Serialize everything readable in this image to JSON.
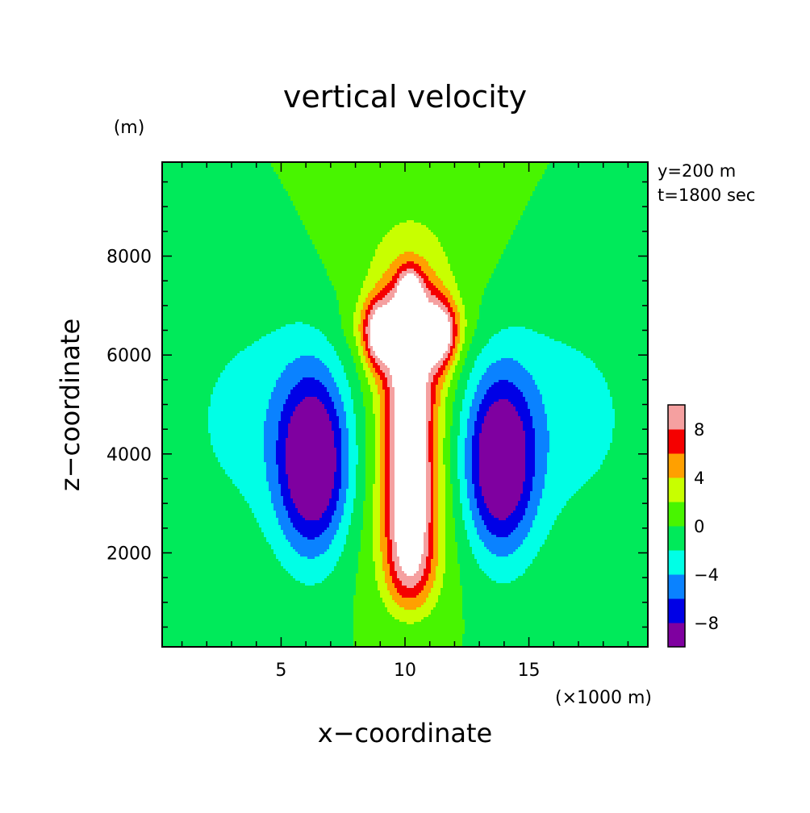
{
  "chart_data": {
    "type": "heatmap",
    "subtype": "filled-contour",
    "title": "vertical velocity",
    "xlabel": "x−coordinate",
    "ylabel": "z−coordinate",
    "x_unit": "(×1000 m)",
    "y_unit": "(m)",
    "annotations": [
      "y=200 m",
      "t=1800 sec"
    ],
    "xlim": [
      0.2,
      19.8
    ],
    "ylim": [
      100,
      9900
    ],
    "x_ticks": [
      "5",
      "10",
      "15"
    ],
    "y_ticks": [
      "2000",
      "4000",
      "6000",
      "8000"
    ],
    "x_tick_values": [
      5,
      10,
      15
    ],
    "y_tick_values": [
      2000,
      4000,
      6000,
      8000
    ],
    "grid": false,
    "colorbar": {
      "placement": "right",
      "levels": [
        -10,
        -8,
        -6,
        -4,
        -2,
        0,
        2,
        4,
        6,
        8,
        10
      ],
      "tick_labels": [
        "−8",
        "−4",
        "0",
        "4",
        "8"
      ],
      "tick_values": [
        -8,
        -4,
        0,
        4,
        8
      ],
      "colors": [
        "#7f00a0",
        "#0000e6",
        "#0a82ff",
        "#00ffe6",
        "#00ea5a",
        "#48f500",
        "#c8ff00",
        "#ffa000",
        "#f50000",
        "#f5a0a0"
      ],
      "above_max_color": "#ffffff"
    },
    "field_description": "Symmetric updraft core about x=10 km, maximum above 10 m/s between about z=1500 and 7500 m; downdraft lobes near x=6.3 km and x=13.7 km around z=3800 m reaching about -10 m/s.",
    "features": [
      {
        "kind": "updraft",
        "x": 10.2,
        "z": 4300,
        "peak": 12
      },
      {
        "kind": "downdraft",
        "x": 6.3,
        "z": 3800,
        "peak": -10
      },
      {
        "kind": "downdraft",
        "x": 13.7,
        "z": 3800,
        "peak": -10
      }
    ]
  }
}
